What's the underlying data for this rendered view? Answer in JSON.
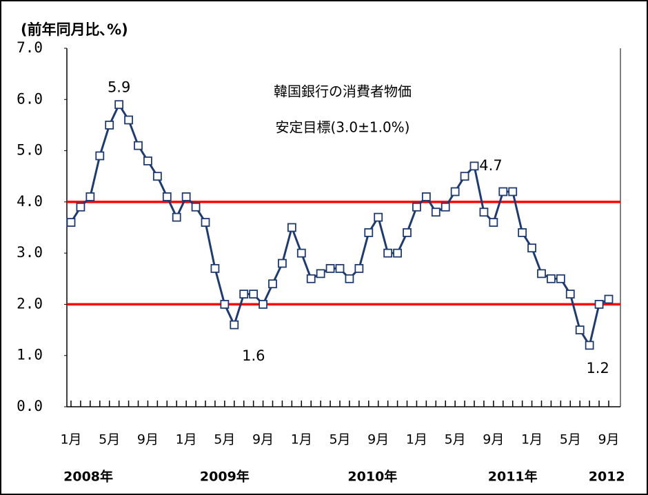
{
  "chart_data": {
    "type": "line",
    "y_axis_label": "(前年同月比､%)",
    "annotation_lines": [
      "韓国銀行の消費者物価",
      "安定目標(3.0±1.0%)"
    ],
    "categories": [
      "1月",
      null,
      null,
      null,
      "5月",
      null,
      null,
      null,
      "9月",
      null,
      null,
      null,
      "1月",
      null,
      null,
      null,
      "5月",
      null,
      null,
      null,
      "9月",
      null,
      null,
      null,
      "1月",
      null,
      null,
      null,
      "5月",
      null,
      null,
      null,
      "9月",
      null,
      null,
      null,
      "1月",
      null,
      null,
      null,
      "5月",
      null,
      null,
      null,
      "9月",
      null,
      null,
      null,
      "1月",
      null,
      null,
      null,
      "5月",
      null,
      null,
      null,
      "9月"
    ],
    "year_labels": [
      "2008年",
      "2009年",
      "2010年",
      "2011年",
      "2012"
    ],
    "series": [
      {
        "color": "#1f3b6e",
        "marker_fill": "#ffffff",
        "values": [
          3.6,
          3.9,
          4.1,
          4.9,
          5.5,
          5.9,
          5.6,
          5.1,
          4.8,
          4.5,
          4.1,
          3.7,
          4.1,
          3.9,
          3.6,
          2.7,
          2.0,
          1.6,
          2.2,
          2.2,
          2.0,
          2.4,
          2.8,
          3.5,
          3.0,
          2.5,
          2.6,
          2.7,
          2.7,
          2.5,
          2.7,
          3.4,
          3.7,
          3.0,
          3.0,
          3.4,
          3.9,
          4.1,
          3.8,
          3.9,
          4.2,
          4.5,
          4.7,
          3.8,
          3.6,
          4.2,
          4.2,
          3.4,
          3.1,
          2.6,
          2.5,
          2.5,
          2.2,
          1.5,
          1.2,
          2.0,
          2.1
        ],
        "value_labels": [
          null,
          null,
          null,
          null,
          null,
          "5.9",
          null,
          null,
          null,
          null,
          null,
          null,
          null,
          null,
          null,
          null,
          null,
          "1.6",
          null,
          null,
          null,
          null,
          null,
          null,
          null,
          null,
          null,
          null,
          null,
          null,
          null,
          null,
          null,
          null,
          null,
          null,
          null,
          null,
          null,
          null,
          null,
          null,
          "4.7",
          null,
          null,
          null,
          null,
          null,
          null,
          null,
          null,
          null,
          null,
          null,
          "1.2",
          null,
          null
        ]
      }
    ],
    "reference_lines": {
      "values": [
        2.0,
        4.0
      ],
      "color": "#ff0000"
    },
    "ylim": [
      0,
      7
    ],
    "yticks": [
      {
        "value": 0,
        "label": "0.0"
      },
      {
        "value": 1,
        "label": "1.0"
      },
      {
        "value": 2,
        "label": "2.0"
      },
      {
        "value": 3,
        "label": "3.0"
      },
      {
        "value": 4,
        "label": "4.0"
      },
      {
        "value": 5,
        "label": "5.0"
      },
      {
        "value": 6,
        "label": "6.0"
      },
      {
        "value": 7,
        "label": "7.0"
      }
    ],
    "grid": false
  }
}
